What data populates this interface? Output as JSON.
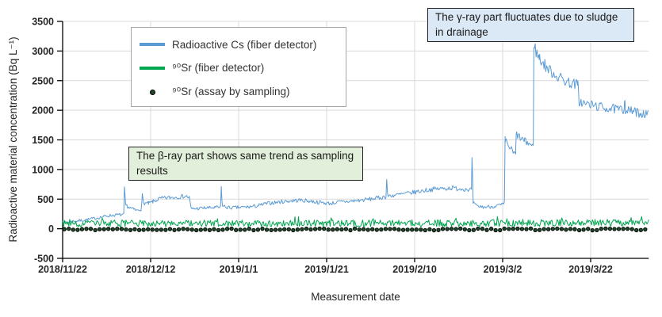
{
  "colors": {
    "cs_blue": "#5b9bd5",
    "sr_green": "#00a550",
    "dot_fill": "#1d4a2a",
    "dot_stroke": "#000000",
    "grid": "#d9d9d9",
    "axis": "#000000",
    "tick_text": "#262626",
    "annotation_border": "#222222",
    "gamma_annotation_bg": "#dbe8f5",
    "beta_annotation_bg": "#e2efda",
    "legend_border": "#a6a6a6"
  },
  "chart_data": {
    "type": "line",
    "title": "",
    "xlabel": "Measurement date",
    "ylabel": "Radioactive material concentration (Bq L⁻¹)",
    "ylim": [
      -500,
      3500
    ],
    "ytick_step": 500,
    "xticks": [
      "2018/11/22",
      "2018/12/12",
      "2019/1/1",
      "2019/1/21",
      "2019/2/10",
      "2019/3/2",
      "2019/3/22"
    ],
    "xtick_interval_days": 20,
    "x_total_days": 133.2,
    "grid": true,
    "legend_position": "upper-left-inside",
    "annotations": [
      {
        "id": "gamma",
        "text": "The γ-ray part fluctuates due to sludge in drainage"
      },
      {
        "id": "beta",
        "text": "The β-ray part shows same trend as sampling results"
      }
    ],
    "series": [
      {
        "name": "Radioactive Cs (fiber detector)",
        "type": "noisy_line",
        "color": "#5b9bd5",
        "noise_base": 20,
        "noise_scale": 0.03,
        "keypoints": [
          [
            0,
            110
          ],
          [
            2,
            122
          ],
          [
            4,
            138
          ],
          [
            6,
            158
          ],
          [
            8,
            185
          ],
          [
            10,
            215
          ],
          [
            12,
            232
          ],
          [
            13.9,
            238
          ],
          [
            14.05,
            700
          ],
          [
            14.3,
            400
          ],
          [
            15,
            365
          ],
          [
            16,
            330
          ],
          [
            17,
            305
          ],
          [
            17.8,
            330
          ],
          [
            18.1,
            560
          ],
          [
            18.4,
            435
          ],
          [
            19.5,
            425
          ],
          [
            20.5,
            455
          ],
          [
            22,
            505
          ],
          [
            24,
            525
          ],
          [
            26,
            535
          ],
          [
            28,
            550
          ],
          [
            28.8,
            525
          ],
          [
            29.2,
            335
          ],
          [
            31,
            345
          ],
          [
            33,
            352
          ],
          [
            35,
            358
          ],
          [
            35.9,
            362
          ],
          [
            36.05,
            700
          ],
          [
            36.3,
            385
          ],
          [
            37.5,
            358
          ],
          [
            39,
            355
          ],
          [
            41,
            362
          ],
          [
            43,
            372
          ],
          [
            44.5,
            390
          ],
          [
            46,
            420
          ],
          [
            48,
            442
          ],
          [
            50,
            458
          ],
          [
            52,
            472
          ],
          [
            54,
            482
          ],
          [
            56,
            468
          ],
          [
            58,
            448
          ],
          [
            60,
            432
          ],
          [
            61,
            428
          ],
          [
            62,
            442
          ],
          [
            64,
            456
          ],
          [
            66,
            468
          ],
          [
            68,
            482
          ],
          [
            70,
            502
          ],
          [
            72,
            522
          ],
          [
            73.5,
            542
          ],
          [
            73.65,
            850
          ],
          [
            73.85,
            558
          ],
          [
            75,
            562
          ],
          [
            77,
            582
          ],
          [
            79,
            605
          ],
          [
            81,
            632
          ],
          [
            83,
            655
          ],
          [
            85,
            672
          ],
          [
            87,
            682
          ],
          [
            88.5,
            688
          ],
          [
            90,
            678
          ],
          [
            92,
            668
          ],
          [
            92.9,
            662
          ],
          [
            93.05,
            1150
          ],
          [
            93.3,
            440
          ],
          [
            94,
            385
          ],
          [
            95,
            372
          ],
          [
            96,
            366
          ],
          [
            97,
            372
          ],
          [
            98,
            378
          ],
          [
            99,
            392
          ],
          [
            100,
            405
          ],
          [
            100.4,
            425
          ],
          [
            100.55,
            1500
          ],
          [
            101,
            1435
          ],
          [
            101.6,
            1375
          ],
          [
            102.2,
            1310
          ],
          [
            102.8,
            1255
          ],
          [
            102.95,
            1245
          ],
          [
            103.1,
            1600
          ],
          [
            103.6,
            1560
          ],
          [
            104.2,
            1520
          ],
          [
            104.9,
            1480
          ],
          [
            105.8,
            1445
          ],
          [
            106.8,
            1405
          ],
          [
            106.95,
            1395
          ],
          [
            107.1,
            3150
          ],
          [
            107.4,
            3040
          ],
          [
            107.8,
            2950
          ],
          [
            108.3,
            2890
          ],
          [
            109,
            2815
          ],
          [
            110,
            2725
          ],
          [
            111,
            2655
          ],
          [
            112,
            2600
          ],
          [
            113,
            2550
          ],
          [
            114,
            2505
          ],
          [
            115,
            2470
          ],
          [
            116,
            2450
          ],
          [
            117.1,
            2430
          ],
          [
            117.35,
            2150
          ],
          [
            118,
            2125
          ],
          [
            119,
            2105
          ],
          [
            120,
            2090
          ],
          [
            121,
            2075
          ],
          [
            122,
            2060
          ],
          [
            123,
            2045
          ],
          [
            124,
            2035
          ],
          [
            125,
            2025
          ],
          [
            126,
            2015
          ],
          [
            127,
            2005
          ],
          [
            127.55,
            1998
          ],
          [
            127.7,
            2230
          ],
          [
            127.9,
            2005
          ],
          [
            128.6,
            1992
          ],
          [
            129.5,
            1980
          ],
          [
            130.5,
            1962
          ],
          [
            131.5,
            1948
          ],
          [
            132.5,
            1932
          ],
          [
            133.2,
            1922
          ]
        ]
      },
      {
        "name": "⁹⁰Sr (fiber detector)",
        "type": "noisy_line",
        "color": "#00a550",
        "noise_base": 58,
        "noise_scale": 0,
        "spiky": true,
        "min_value": 18,
        "keypoints": [
          [
            0,
            88
          ],
          [
            20,
            90
          ],
          [
            40,
            88
          ],
          [
            60,
            90
          ],
          [
            80,
            92
          ],
          [
            100,
            95
          ],
          [
            120,
            100
          ],
          [
            133.2,
            102
          ]
        ]
      },
      {
        "name": "⁹⁰Sr (assay by sampling)",
        "type": "dots",
        "color": "#1d4a2a",
        "stroke": "#000000",
        "value": -12,
        "jitter": 15,
        "interval_days": 1,
        "start_day": 0.4,
        "radius": 2.2
      }
    ]
  }
}
